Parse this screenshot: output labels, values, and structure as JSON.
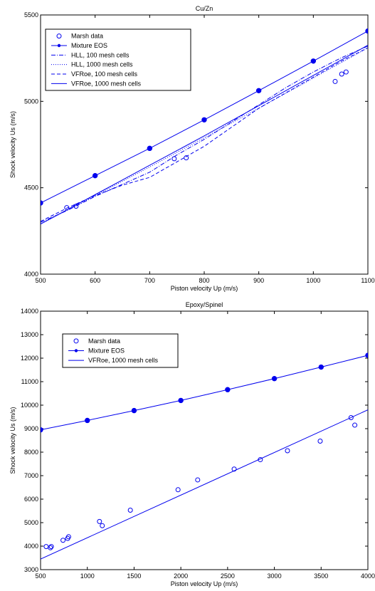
{
  "colors": {
    "series": "#0000ee",
    "axis": "#000000",
    "background": "#ffffff"
  },
  "chart_data": [
    {
      "type": "line",
      "title": "Cu/Zn",
      "xlabel": "Piston velocity Up (m/s)",
      "ylabel": "Shock velocity Us (m/s)",
      "xlim": [
        500,
        1100
      ],
      "ylim": [
        4000,
        5500
      ],
      "xticks": [
        500,
        600,
        700,
        800,
        900,
        1000,
        1100
      ],
      "yticks": [
        4000,
        4500,
        5000,
        5500
      ],
      "grid": false,
      "legend_position": "top-left",
      "series": [
        {
          "name": "Marsh data",
          "style": "circle-open",
          "x": [
            548,
            565,
            745,
            767,
            1040,
            1052,
            1060
          ],
          "y": [
            4385,
            4393,
            4668,
            4673,
            5115,
            5158,
            5170
          ]
        },
        {
          "name": "Mixture EOS",
          "style": "solid-dot",
          "x": [
            500,
            600,
            700,
            800,
            900,
            1000,
            1100
          ],
          "y": [
            4412,
            4570,
            4728,
            4893,
            5062,
            5233,
            5407
          ]
        },
        {
          "name": "HLL, 100 mesh cells",
          "style": "dashdot",
          "x": [
            500,
            550,
            600,
            650,
            700,
            750,
            800,
            850,
            900,
            950,
            1000,
            1050,
            1100
          ],
          "y": [
            4300,
            4370,
            4450,
            4520,
            4590,
            4690,
            4780,
            4880,
            4980,
            5080,
            5170,
            5250,
            5320
          ]
        },
        {
          "name": "HLL, 1000 mesh cells",
          "style": "dotted",
          "x": [
            500,
            600,
            700,
            800,
            900,
            1000,
            1100
          ],
          "y": [
            4290,
            4455,
            4620,
            4790,
            4960,
            5135,
            5310
          ]
        },
        {
          "name": "VFRoe, 100 mesh cells",
          "style": "dashed",
          "x": [
            500,
            550,
            600,
            650,
            700,
            750,
            800,
            850,
            900,
            950,
            1000,
            1050,
            1100
          ],
          "y": [
            4305,
            4385,
            4455,
            4515,
            4560,
            4650,
            4740,
            4850,
            4960,
            5050,
            5140,
            5230,
            5310
          ]
        },
        {
          "name": "VFRoe, 1000 mesh cells",
          "style": "solid",
          "x": [
            500,
            600,
            700,
            800,
            900,
            1000,
            1100
          ],
          "y": [
            4290,
            4460,
            4630,
            4800,
            4975,
            5150,
            5325
          ]
        }
      ]
    },
    {
      "type": "line",
      "title": "Epoxy/Spinel",
      "xlabel": "Piston velocity Up (m/s)",
      "ylabel": "Shock velocity Us (m/s)",
      "xlim": [
        500,
        4000
      ],
      "ylim": [
        3000,
        14000
      ],
      "xticks": [
        500,
        1000,
        1500,
        2000,
        2500,
        3000,
        3500,
        4000
      ],
      "yticks": [
        3000,
        4000,
        5000,
        6000,
        7000,
        8000,
        9000,
        10000,
        11000,
        12000,
        13000,
        14000
      ],
      "grid": false,
      "legend_position": "top-left",
      "series": [
        {
          "name": "Marsh data",
          "style": "circle-open",
          "x": [
            560,
            605,
            615,
            740,
            790,
            800,
            1130,
            1160,
            1460,
            1970,
            2180,
            2570,
            2850,
            3140,
            3490,
            3820,
            3860
          ],
          "y": [
            3980,
            3930,
            3980,
            4250,
            4330,
            4400,
            5050,
            4870,
            5530,
            6400,
            6820,
            7280,
            7680,
            8060,
            8470,
            9470,
            9150
          ]
        },
        {
          "name": "Mixture EOS",
          "style": "solid-dot",
          "x": [
            500,
            1000,
            1500,
            2000,
            2500,
            3000,
            3500,
            4000
          ],
          "y": [
            8950,
            9350,
            9770,
            10200,
            10660,
            11130,
            11620,
            12120
          ]
        },
        {
          "name": "VFRoe, 1000 mesh cells",
          "style": "solid",
          "x": [
            500,
            4000
          ],
          "y": [
            3450,
            9800
          ]
        }
      ]
    }
  ]
}
